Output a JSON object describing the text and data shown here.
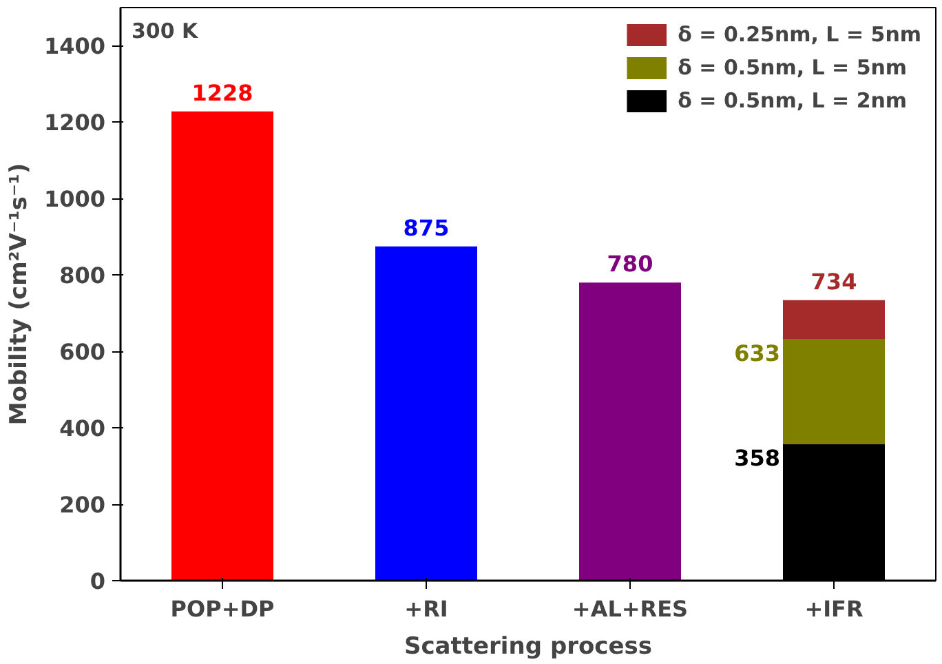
{
  "chart_data": {
    "type": "bar",
    "stacked": true,
    "xlabel": "Scattering process",
    "ylabel": "Mobility (cm²V⁻¹s⁻¹)",
    "categories": [
      "POP+DP",
      "+RI",
      "+AL+RES",
      "+IFR"
    ],
    "series": [
      {
        "colors": [
          "#ff0000",
          "#0000ff",
          "#800080",
          null
        ],
        "values": [
          1228,
          875,
          780,
          null
        ],
        "value_labels": [
          "1228",
          "875",
          "780",
          null
        ]
      },
      {
        "name": "δ = 0.5nm, L = 2nm",
        "color": "#000000",
        "values": [
          null,
          null,
          null,
          358
        ]
      },
      {
        "name": "δ = 0.5nm, L = 5nm",
        "color": "#808000",
        "values": [
          null,
          null,
          null,
          275
        ]
      },
      {
        "name": "δ = 0.25nm, L = 5nm",
        "color": "#a52a2a",
        "values": [
          null,
          null,
          null,
          101
        ]
      }
    ],
    "totals": [
      null,
      null,
      null,
      "734"
    ],
    "ylim": [
      0,
      1500
    ],
    "yticks": [
      0,
      200,
      400,
      600,
      800,
      1000,
      1200,
      1400
    ],
    "annotations": [
      "300 K",
      {
        "text": "633",
        "x": "+IFR",
        "y": 633
      },
      {
        "text": "358",
        "x": "+IFR",
        "y": 358
      }
    ],
    "legend": "top right",
    "grid": false
  }
}
